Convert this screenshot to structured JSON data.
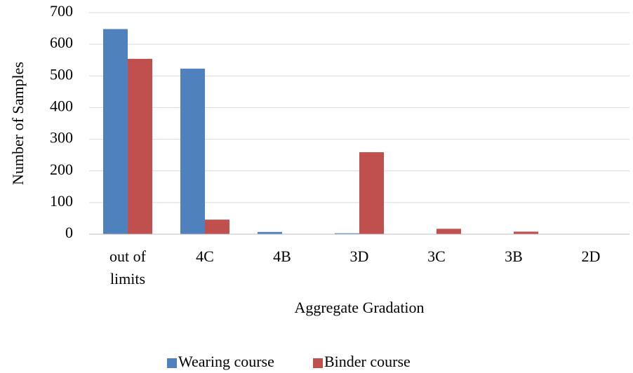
{
  "chart_data": {
    "type": "bar",
    "xlabel": "Aggregate Gradation",
    "ylabel": "Number of Samples",
    "categories": [
      "out of limits",
      "4C",
      "4B",
      "3D",
      "3C",
      "3B",
      "2D"
    ],
    "series": [
      {
        "name": "Wearing course",
        "color": "#4f81bd",
        "values": [
          648,
          523,
          7,
          3,
          1,
          0,
          0
        ]
      },
      {
        "name": "Binder course",
        "color": "#c0504d",
        "values": [
          554,
          46,
          0,
          259,
          17,
          8,
          0
        ]
      }
    ],
    "ylim": [
      0,
      700
    ],
    "yticks": [
      0,
      100,
      200,
      300,
      400,
      500,
      600,
      700
    ],
    "grid": true,
    "legend": "bottom"
  }
}
